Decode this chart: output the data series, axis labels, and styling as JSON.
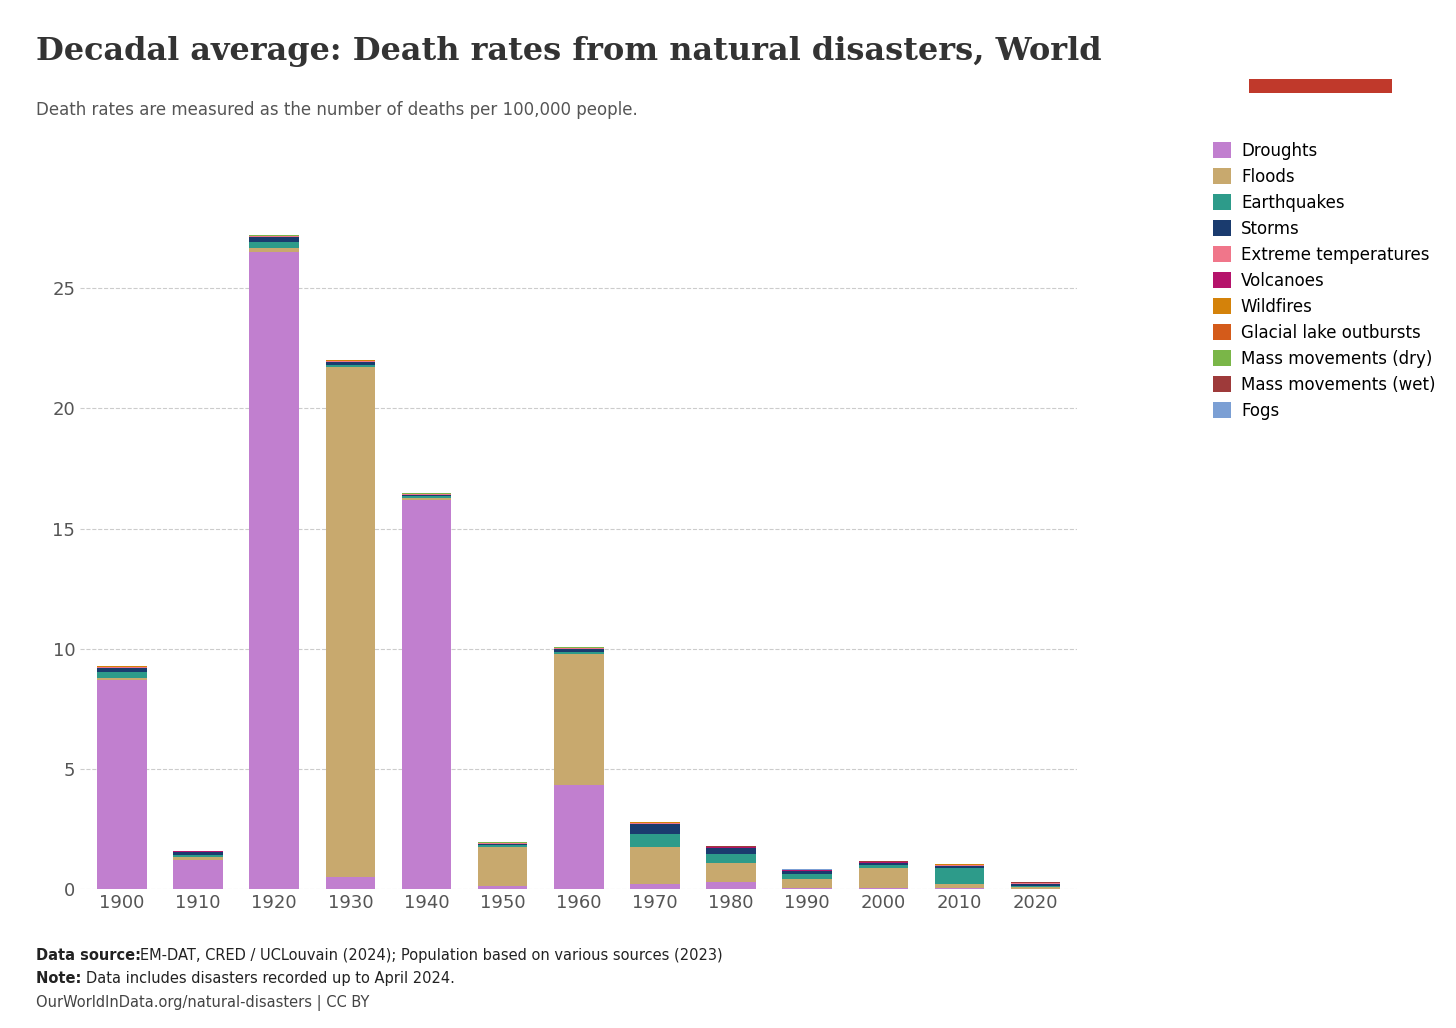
{
  "decades": [
    1900,
    1910,
    1920,
    1930,
    1940,
    1950,
    1960,
    1970,
    1980,
    1990,
    2000,
    2010,
    2020
  ],
  "categories": [
    "Droughts",
    "Floods",
    "Earthquakes",
    "Storms",
    "Extreme temperatures",
    "Volcanoes",
    "Wildfires",
    "Glacial lake outbursts",
    "Mass movements (dry)",
    "Mass movements (wet)",
    "Fogs"
  ],
  "colors": [
    "#c17fcf",
    "#c8a96e",
    "#2d9b8a",
    "#1a3b6e",
    "#f0768a",
    "#b5136b",
    "#d4820a",
    "#d45b1a",
    "#7ab648",
    "#9e3a3a",
    "#7b9fd4"
  ],
  "data": {
    "Droughts": [
      8.7,
      1.2,
      26.5,
      0.5,
      16.2,
      0.12,
      4.35,
      0.2,
      0.28,
      0.06,
      0.03,
      0.03,
      0.02
    ],
    "Floods": [
      0.07,
      0.12,
      0.18,
      21.2,
      0.07,
      1.65,
      5.45,
      1.55,
      0.82,
      0.38,
      0.85,
      0.18,
      0.07
    ],
    "Earthquakes": [
      0.25,
      0.12,
      0.25,
      0.1,
      0.08,
      0.05,
      0.07,
      0.55,
      0.38,
      0.18,
      0.12,
      0.68,
      0.06
    ],
    "Storms": [
      0.18,
      0.09,
      0.18,
      0.12,
      0.05,
      0.07,
      0.12,
      0.42,
      0.22,
      0.12,
      0.07,
      0.08,
      0.05
    ],
    "Extreme temperatures": [
      0.04,
      0.02,
      0.04,
      0.04,
      0.02,
      0.02,
      0.03,
      0.03,
      0.03,
      0.03,
      0.04,
      0.04,
      0.04
    ],
    "Volcanoes": [
      0.02,
      0.02,
      0.02,
      0.02,
      0.02,
      0.02,
      0.02,
      0.02,
      0.02,
      0.02,
      0.02,
      0.01,
      0.01
    ],
    "Wildfires": [
      0.01,
      0.01,
      0.01,
      0.01,
      0.01,
      0.01,
      0.01,
      0.01,
      0.01,
      0.01,
      0.01,
      0.01,
      0.01
    ],
    "Glacial lake outbursts": [
      0.0,
      0.0,
      0.0,
      0.0,
      0.0,
      0.0,
      0.0,
      0.0,
      0.0,
      0.0,
      0.0,
      0.0,
      0.0
    ],
    "Mass movements (dry)": [
      0.01,
      0.01,
      0.01,
      0.01,
      0.01,
      0.01,
      0.01,
      0.01,
      0.01,
      0.01,
      0.01,
      0.01,
      0.01
    ],
    "Mass movements (wet)": [
      0.01,
      0.01,
      0.01,
      0.01,
      0.01,
      0.01,
      0.01,
      0.01,
      0.01,
      0.01,
      0.01,
      0.01,
      0.01
    ],
    "Fogs": [
      0.01,
      0.01,
      0.01,
      0.01,
      0.01,
      0.01,
      0.01,
      0.01,
      0.01,
      0.01,
      0.01,
      0.01,
      0.01
    ]
  },
  "title": "Decadal average: Death rates from natural disasters, World",
  "subtitle": "Death rates are measured as the number of deaths per 100,000 people.",
  "ylim": [
    0,
    28
  ],
  "yticks": [
    0,
    5,
    10,
    15,
    20,
    25
  ],
  "footnote_source_bold": "Data source: ",
  "footnote_source_rest": "EM-DAT, CRED / UCLouvain (2024); Population based on various sources (2023)",
  "footnote_note_bold": "Note: ",
  "footnote_note_rest": "Data includes disasters recorded up to April 2024.",
  "footnote_url": "OurWorldInData.org/natural-disasters | CC BY",
  "background_color": "#ffffff",
  "logo_bg": "#1c3461",
  "logo_red": "#c0392b",
  "title_color": "#333333",
  "subtitle_color": "#555555",
  "tick_color": "#555555",
  "grid_color": "#cccccc"
}
